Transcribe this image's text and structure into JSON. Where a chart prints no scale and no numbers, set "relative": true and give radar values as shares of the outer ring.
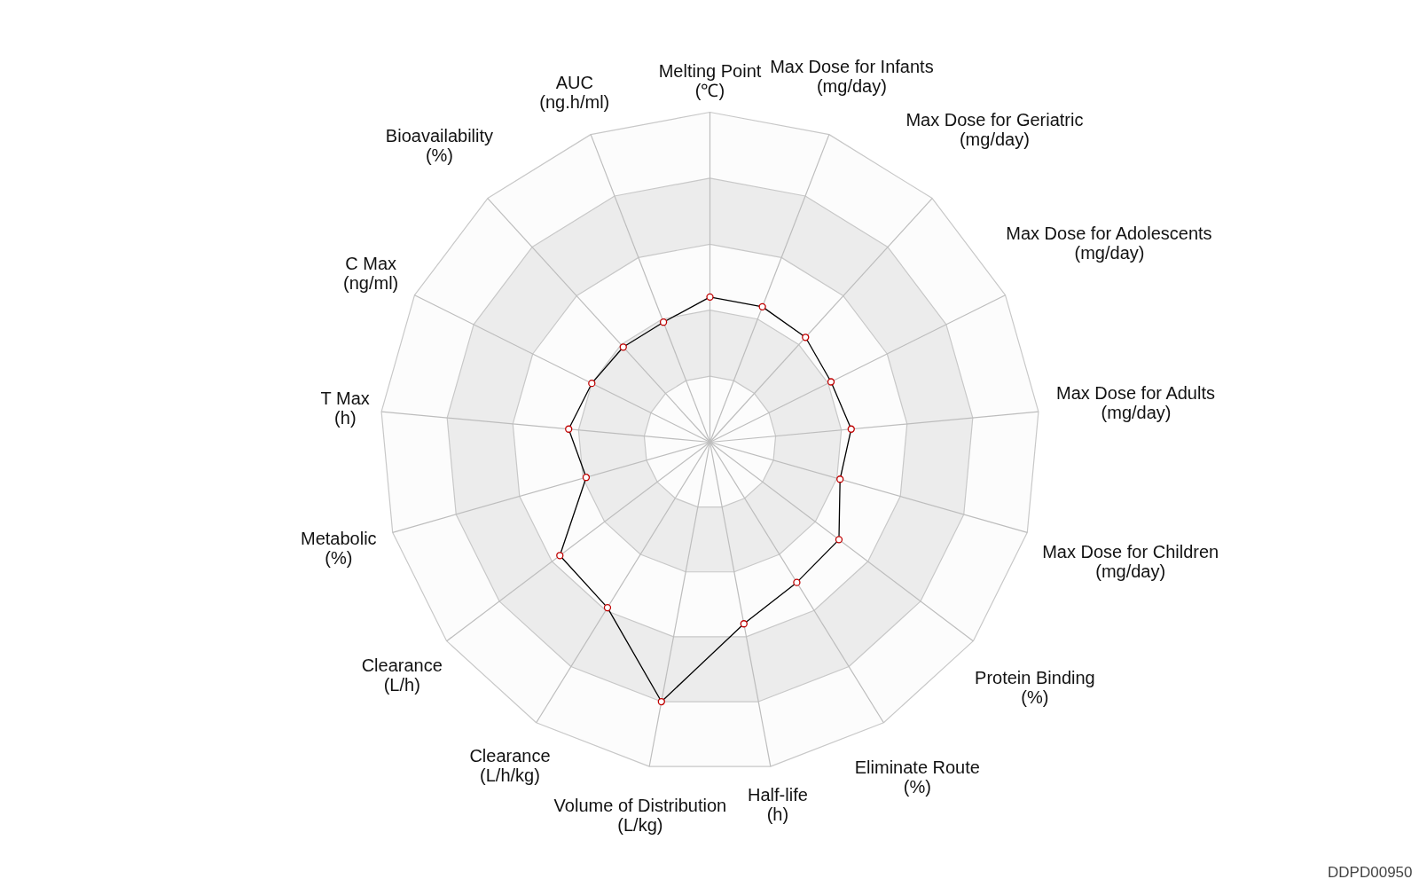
{
  "chart_data": {
    "type": "radar",
    "relative": true,
    "grid": true,
    "marker": "circle",
    "categories": [
      "Melting Point\n(℃)",
      "Max Dose for Infants\n(mg/day)",
      "Max Dose for Geriatric\n(mg/day)",
      "Max Dose for Adolescents\n(mg/day)",
      "Max Dose for Adults\n(mg/day)",
      "Max Dose for Children\n(mg/day)",
      "Protein Binding\n(%)",
      "Eliminate Route\n(%)",
      "Half-life\n(h)",
      "Volume of Distribution\n(L/kg)",
      "Clearance\n(L/h/kg)",
      "Clearance\n(L/h)",
      "Metabolic\n(%)",
      "T Max\n(h)",
      "C Max\n(ng/ml)",
      "Bioavailability\n(%)",
      "AUC\n(ng.h/ml)"
    ],
    "series": [
      {
        "color": "#000000",
        "values": [
          0.44,
          0.44,
          0.43,
          0.41,
          0.43,
          0.41,
          0.49,
          0.5,
          0.56,
          0.8,
          0.59,
          0.57,
          0.39,
          0.43,
          0.4,
          0.39,
          0.39
        ]
      }
    ],
    "annotations": [
      "DDPD00950"
    ]
  }
}
